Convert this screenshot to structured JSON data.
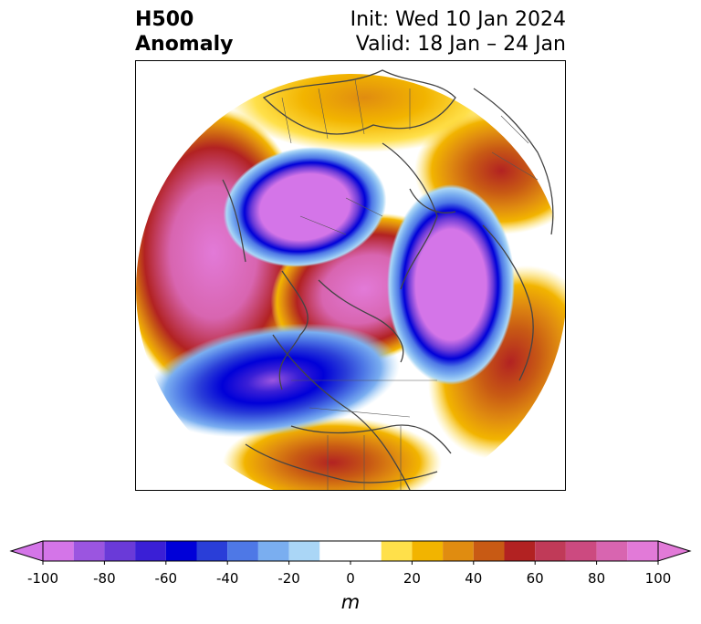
{
  "title": {
    "left_line1": "H500",
    "left_line2": "Anomaly",
    "right_line1": "Init: Wed 10 Jan 2024",
    "right_line2": "Valid: 18 Jan – 24 Jan"
  },
  "colorbar": {
    "unit": "m",
    "ticks": [
      "-100",
      "-80",
      "-60",
      "-40",
      "-20",
      "0",
      "20",
      "40",
      "60",
      "80",
      "100"
    ],
    "levels": [
      -100,
      -90,
      -80,
      -70,
      -60,
      -50,
      -40,
      -30,
      -20,
      -10,
      10,
      20,
      30,
      40,
      50,
      60,
      70,
      80,
      90,
      100
    ],
    "colors": [
      "#d475e8",
      "#9b55e0",
      "#6a3ad8",
      "#3a1fd6",
      "#0000d8",
      "#2a3ed8",
      "#4e78e6",
      "#7aaef0",
      "#aad6f6",
      "#ffffff",
      "#ffe04a",
      "#f2b400",
      "#e08c10",
      "#c85a14",
      "#b22222",
      "#c03a58",
      "#cc4a80",
      "#d865b0",
      "#e27ad8"
    ],
    "under_color": "#d475e8",
    "over_color": "#e27ad8"
  },
  "map": {
    "projection": "polar-stereographic",
    "field": "500 hPa geopotential height anomaly"
  }
}
